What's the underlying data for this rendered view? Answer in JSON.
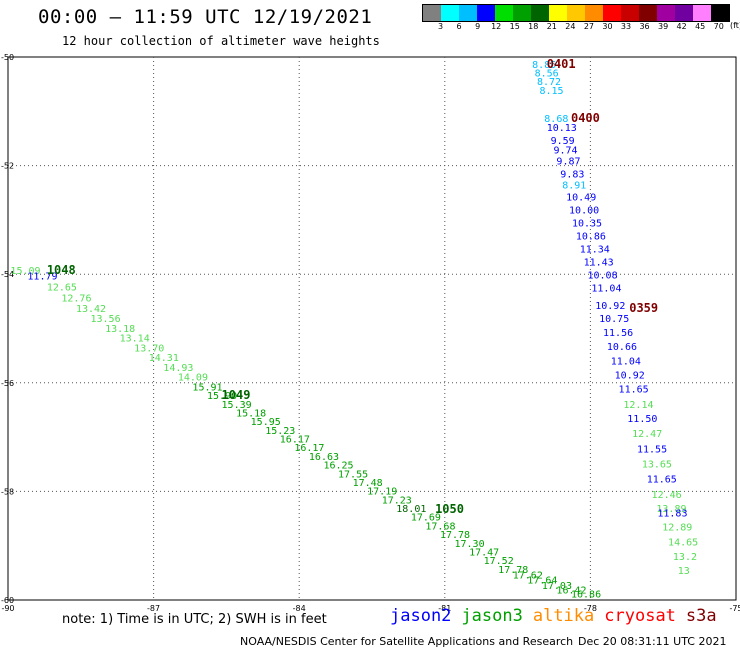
{
  "header": {
    "title": "00:00 – 11:59 UTC 12/19/2021",
    "subtitle": "12 hour collection of altimeter wave heights"
  },
  "colorbar": {
    "colors": [
      "#808080",
      "#00ffff",
      "#00bfff",
      "#0000ff",
      "#00dd00",
      "#00a000",
      "#006400",
      "#ffff00",
      "#ffc800",
      "#ff8c00",
      "#ff0000",
      "#c80000",
      "#800000",
      "#a000a0",
      "#7000a0",
      "#ff80ff",
      "#000000"
    ],
    "labels": [
      "3",
      "6",
      "9",
      "12",
      "15",
      "18",
      "21",
      "24",
      "27",
      "30",
      "33",
      "36",
      "39",
      "42",
      "45",
      "70"
    ],
    "unit": "(ft)"
  },
  "footer": {
    "note": "note: 1) Time is in UTC; 2) SWH is in feet",
    "legend": [
      {
        "name": "jason2",
        "color": "#0000ff"
      },
      {
        "name": "jason3",
        "color": "#00a000"
      },
      {
        "name": "altika",
        "color": "#ff8c00"
      },
      {
        "name": "cryosat",
        "color": "#ff0000"
      },
      {
        "name": "s3a",
        "color": "#800000"
      }
    ],
    "credit": "NOAA/NESDIS Center for Satellite Applications and Research",
    "timestamp": "Dec 20 08:31:11 UTC 2021"
  },
  "chart_data": {
    "type": "scatter",
    "title": "00:00 – 11:59 UTC 12/19/2021",
    "subtitle": "12 hour collection of altimeter wave heights",
    "xlim": [
      -90,
      -75
    ],
    "ylim": [
      -60,
      -50
    ],
    "x_ticks": [
      "-90",
      "-87",
      "-84",
      "-81",
      "-78",
      "-75"
    ],
    "x_tick_values": [
      -90,
      -87,
      -84,
      -81,
      -78,
      -75
    ],
    "y_ticks": [
      "-50",
      "-52",
      "-54",
      "-56",
      "-58",
      "-60"
    ],
    "y_tick_values": [
      -50,
      -52,
      -54,
      -56,
      -58,
      -60
    ],
    "grid": true,
    "time_labels": [
      {
        "text": "0401",
        "lon": -78.9,
        "lat": -50.2,
        "color": "#800000"
      },
      {
        "text": "0400",
        "lon": -78.4,
        "lat": -51.2,
        "color": "#800000"
      },
      {
        "text": "0359",
        "lon": -77.2,
        "lat": -54.7,
        "color": "#800000"
      },
      {
        "text": "1048",
        "lon": -89.2,
        "lat": -54.0,
        "color": "#006400"
      },
      {
        "text": "1049",
        "lon": -85.6,
        "lat": -56.3,
        "color": "#006400"
      },
      {
        "text": "1050",
        "lon": -81.2,
        "lat": -58.4,
        "color": "#006400"
      }
    ],
    "series": [
      {
        "name": "s3a",
        "color_note": "pass near -78.5",
        "points": [
          {
            "lon": -79.2,
            "lat": -50.2,
            "v": "8.85",
            "c": "#00bfff"
          },
          {
            "lon": -79.15,
            "lat": -50.36,
            "v": "8.56",
            "c": "#00bfff"
          },
          {
            "lon": -79.1,
            "lat": -50.52,
            "v": "8.72",
            "c": "#00bfff"
          },
          {
            "lon": -79.05,
            "lat": -50.68,
            "v": "8.15",
            "c": "#00bfff"
          },
          {
            "lon": -78.95,
            "lat": -51.2,
            "v": "8.68",
            "c": "#00bfff"
          },
          {
            "lon": -78.9,
            "lat": -51.36,
            "v": "10.13",
            "c": "#0000ff"
          },
          {
            "lon": -78.82,
            "lat": -51.6,
            "v": "9.59",
            "c": "#0000ff"
          },
          {
            "lon": -78.76,
            "lat": -51.78,
            "v": "9.74",
            "c": "#0000ff"
          },
          {
            "lon": -78.7,
            "lat": -51.98,
            "v": "9.87",
            "c": "#0000ff"
          },
          {
            "lon": -78.62,
            "lat": -52.22,
            "v": "9.83",
            "c": "#0000ff"
          },
          {
            "lon": -78.58,
            "lat": -52.42,
            "v": "8.91",
            "c": "#00bfff"
          },
          {
            "lon": -78.5,
            "lat": -52.64,
            "v": "10.49",
            "c": "#0000ff"
          },
          {
            "lon": -78.44,
            "lat": -52.88,
            "v": "10.00",
            "c": "#0000ff"
          },
          {
            "lon": -78.38,
            "lat": -53.12,
            "v": "10.35",
            "c": "#0000ff"
          },
          {
            "lon": -78.3,
            "lat": -53.36,
            "v": "10.86",
            "c": "#0000ff"
          },
          {
            "lon": -78.22,
            "lat": -53.6,
            "v": "11.34",
            "c": "#0000ff"
          },
          {
            "lon": -78.14,
            "lat": -53.84,
            "v": "11.43",
            "c": "#0000ff"
          },
          {
            "lon": -78.06,
            "lat": -54.08,
            "v": "10.08",
            "c": "#0000ff"
          },
          {
            "lon": -77.98,
            "lat": -54.32,
            "v": "11.04",
            "c": "#0000ff"
          },
          {
            "lon": -77.9,
            "lat": -54.64,
            "v": "10.92",
            "c": "#0000ff"
          },
          {
            "lon": -77.82,
            "lat": -54.88,
            "v": "10.75",
            "c": "#0000ff"
          },
          {
            "lon": -77.74,
            "lat": -55.14,
            "v": "11.56",
            "c": "#0000ff"
          },
          {
            "lon": -77.66,
            "lat": -55.4,
            "v": "10.66",
            "c": "#0000ff"
          },
          {
            "lon": -77.58,
            "lat": -55.66,
            "v": "11.04",
            "c": "#0000ff"
          },
          {
            "lon": -77.5,
            "lat": -55.92,
            "v": "10.92",
            "c": "#0000ff"
          },
          {
            "lon": -77.42,
            "lat": -56.18,
            "v": "11.65",
            "c": "#0000ff"
          },
          {
            "lon": -77.32,
            "lat": -56.46,
            "v": "12.14",
            "c": "#55dd55"
          },
          {
            "lon": -77.24,
            "lat": -56.72,
            "v": "11.50",
            "c": "#0000ff"
          },
          {
            "lon": -77.14,
            "lat": -57.0,
            "v": "12.47",
            "c": "#55dd55"
          },
          {
            "lon": -77.04,
            "lat": -57.28,
            "v": "11.55",
            "c": "#0000ff"
          },
          {
            "lon": -76.94,
            "lat": -57.56,
            "v": "13.65",
            "c": "#55dd55"
          },
          {
            "lon": -76.84,
            "lat": -57.84,
            "v": "11.65",
            "c": "#0000ff"
          },
          {
            "lon": -76.74,
            "lat": -58.12,
            "v": "12.46",
            "c": "#55dd55"
          },
          {
            "lon": -76.64,
            "lat": -58.38,
            "v": "13.89",
            "c": "#55dd55"
          },
          {
            "lon": -76.62,
            "lat": -58.46,
            "v": "11.83",
            "c": "#0000ff"
          },
          {
            "lon": -76.52,
            "lat": -58.72,
            "v": "12.89",
            "c": "#55dd55"
          },
          {
            "lon": -76.4,
            "lat": -59.0,
            "v": "14.65",
            "c": "#55dd55"
          },
          {
            "lon": -76.3,
            "lat": -59.26,
            "v": "13.2",
            "c": "#55dd55"
          },
          {
            "lon": -76.2,
            "lat": -59.52,
            "v": "13",
            "c": "#55dd55"
          }
        ]
      },
      {
        "name": "jason3",
        "color_note": "long descending pass",
        "points": [
          {
            "lon": -89.95,
            "lat": -54.0,
            "v": "15.09",
            "c": "#55dd55"
          },
          {
            "lon": -89.6,
            "lat": -54.1,
            "v": "11.79",
            "c": "#0000ff"
          },
          {
            "lon": -89.2,
            "lat": -54.3,
            "v": "12.65",
            "c": "#55dd55"
          },
          {
            "lon": -88.9,
            "lat": -54.5,
            "v": "12.76",
            "c": "#55dd55"
          },
          {
            "lon": -88.6,
            "lat": -54.7,
            "v": "13.42",
            "c": "#55dd55"
          },
          {
            "lon": -88.3,
            "lat": -54.88,
            "v": "13.56",
            "c": "#55dd55"
          },
          {
            "lon": -88.0,
            "lat": -55.06,
            "v": "13.18",
            "c": "#55dd55"
          },
          {
            "lon": -87.7,
            "lat": -55.24,
            "v": "13.14",
            "c": "#55dd55"
          },
          {
            "lon": -87.4,
            "lat": -55.42,
            "v": "13.70",
            "c": "#55dd55"
          },
          {
            "lon": -87.1,
            "lat": -55.6,
            "v": "14.31",
            "c": "#55dd55"
          },
          {
            "lon": -86.8,
            "lat": -55.78,
            "v": "14.93",
            "c": "#55dd55"
          },
          {
            "lon": -86.5,
            "lat": -55.96,
            "v": "14.09",
            "c": "#55dd55"
          },
          {
            "lon": -86.2,
            "lat": -56.14,
            "v": "15.91",
            "c": "#00a000"
          },
          {
            "lon": -85.9,
            "lat": -56.3,
            "v": "15.90",
            "c": "#00a000"
          },
          {
            "lon": -85.6,
            "lat": -56.46,
            "v": "15.39",
            "c": "#00a000"
          },
          {
            "lon": -85.3,
            "lat": -56.62,
            "v": "15.18",
            "c": "#00a000"
          },
          {
            "lon": -85.0,
            "lat": -56.78,
            "v": "15.95",
            "c": "#00a000"
          },
          {
            "lon": -84.7,
            "lat": -56.94,
            "v": "15.23",
            "c": "#00a000"
          },
          {
            "lon": -84.4,
            "lat": -57.1,
            "v": "16.17",
            "c": "#00a000"
          },
          {
            "lon": -84.1,
            "lat": -57.26,
            "v": "16.17",
            "c": "#00a000"
          },
          {
            "lon": -83.8,
            "lat": -57.42,
            "v": "16.63",
            "c": "#00a000"
          },
          {
            "lon": -83.5,
            "lat": -57.58,
            "v": "16.25",
            "c": "#00a000"
          },
          {
            "lon": -83.2,
            "lat": -57.74,
            "v": "17.55",
            "c": "#00a000"
          },
          {
            "lon": -82.9,
            "lat": -57.9,
            "v": "17.48",
            "c": "#00a000"
          },
          {
            "lon": -82.6,
            "lat": -58.06,
            "v": "17.19",
            "c": "#00a000"
          },
          {
            "lon": -82.3,
            "lat": -58.22,
            "v": "17.23",
            "c": "#00a000"
          },
          {
            "lon": -82.0,
            "lat": -58.38,
            "v": "18.01",
            "c": "#006400"
          },
          {
            "lon": -81.7,
            "lat": -58.54,
            "v": "17.69",
            "c": "#00a000"
          },
          {
            "lon": -81.4,
            "lat": -58.7,
            "v": "17.68",
            "c": "#00a000"
          },
          {
            "lon": -81.1,
            "lat": -58.86,
            "v": "17.78",
            "c": "#00a000"
          },
          {
            "lon": -80.8,
            "lat": -59.02,
            "v": "17.30",
            "c": "#00a000"
          },
          {
            "lon": -80.5,
            "lat": -59.18,
            "v": "17.47",
            "c": "#00a000"
          },
          {
            "lon": -80.2,
            "lat": -59.34,
            "v": "17.52",
            "c": "#00a000"
          },
          {
            "lon": -79.9,
            "lat": -59.5,
            "v": "17.78",
            "c": "#00a000"
          },
          {
            "lon": -79.6,
            "lat": -59.6,
            "v": "17.62",
            "c": "#00a000"
          },
          {
            "lon": -79.3,
            "lat": -59.7,
            "v": "17.64",
            "c": "#00a000"
          },
          {
            "lon": -79.0,
            "lat": -59.8,
            "v": "17.03",
            "c": "#00a000"
          },
          {
            "lon": -78.7,
            "lat": -59.88,
            "v": "16.42",
            "c": "#00a000"
          },
          {
            "lon": -78.4,
            "lat": -59.95,
            "v": "16.86",
            "c": "#00a000"
          }
        ]
      }
    ]
  }
}
